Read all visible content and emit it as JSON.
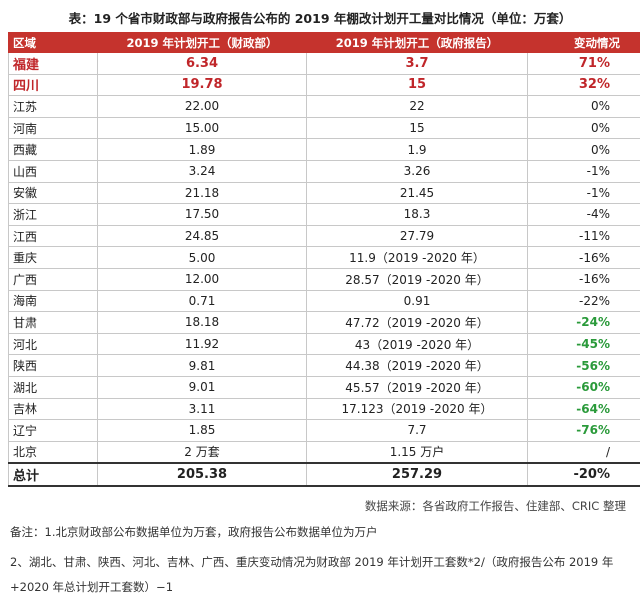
{
  "title": "表：19 个省市财政部与政府报告公布的 2019 年棚改计划开工量对比情况（单位：万套）",
  "table": {
    "header": [
      "区域",
      "2019 年计划开工（财政部）",
      "2019 年计划开工（政府报告）",
      "变动情况"
    ],
    "rows": [
      [
        "福建",
        "6.34",
        "3.7",
        "71%"
      ],
      [
        "四川",
        "19.78",
        "15",
        "32%"
      ],
      [
        "江苏",
        "22.00",
        "22",
        "0%"
      ],
      [
        "河南",
        "15.00",
        "15",
        "0%"
      ],
      [
        "西藏",
        "1.89",
        "1.9",
        "0%"
      ],
      [
        "山西",
        "3.24",
        "3.26",
        "-1%"
      ],
      [
        "安徽",
        "21.18",
        "21.45",
        "-1%"
      ],
      [
        "浙江",
        "17.50",
        "18.3",
        "-4%"
      ],
      [
        "江西",
        "24.85",
        "27.79",
        "-11%"
      ],
      [
        "重庆",
        "5.00",
        "11.9（2019 -2020 年）",
        "-16%"
      ],
      [
        "广西",
        "12.00",
        "28.57（2019 -2020 年）",
        "-16%"
      ],
      [
        "海南",
        "0.71",
        "0.91",
        "-22%"
      ],
      [
        "甘肃",
        "18.18",
        "47.72（2019 -2020 年）",
        "-24%"
      ],
      [
        "河北",
        "11.92",
        "43（2019 -2020 年）",
        "-45%"
      ],
      [
        "陕西",
        "9.81",
        "44.38（2019 -2020 年）",
        "-56%"
      ],
      [
        "湖北",
        "9.01",
        "45.57（2019 -2020 年）",
        "-60%"
      ],
      [
        "吉林",
        "3.11",
        "17.123（2019 -2020 年）",
        "-64%"
      ],
      [
        "辽宁",
        "1.85",
        "7.7",
        "-76%"
      ],
      [
        "北京",
        "2 万套",
        "1.15 万户",
        "/"
      ],
      [
        "总计",
        "205.38",
        "257.29",
        "-20%"
      ]
    ]
  },
  "source": "数据来源：各省政府工作报告、住建部、CRIC 整理",
  "notes": [
    "备注：1.北京财政部公布数据单位为万套，政府报告公布数据单位为万户",
    "2、湖北、甘肃、陕西、河北、吉林、广西、重庆变动情况为财政部 2019 年计划开工套数*2/（政府报告公布 2019 年+2020 年总计划开工套数）−1"
  ]
}
